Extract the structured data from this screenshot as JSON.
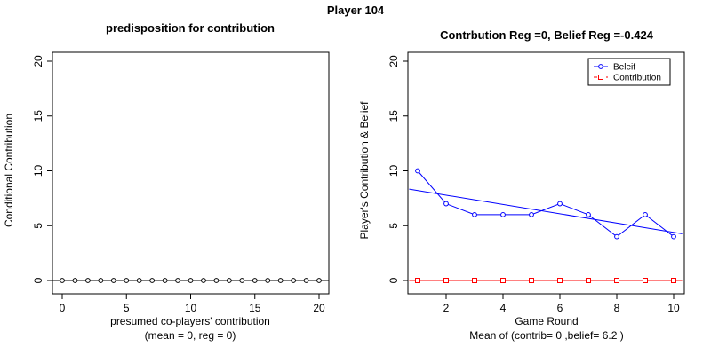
{
  "page_title": "Player 104",
  "colors": {
    "belief": "#0000ff",
    "contribution": "#ff0000",
    "axis": "#000000",
    "background": "#ffffff"
  },
  "chart_data": [
    {
      "type": "scatter",
      "title": "predisposition for contribution",
      "xlabel": "presumed co-players' contribution",
      "xlabel_sub": "(mean = 0, reg = 0)",
      "ylabel": "Conditional Contribution",
      "xlim": [
        0,
        20
      ],
      "ylim": [
        0,
        20
      ],
      "x_ticks": [
        0,
        5,
        10,
        15,
        20
      ],
      "y_ticks": [
        0,
        5,
        10,
        15,
        20
      ],
      "grid": false,
      "reference_line": {
        "type": "horizontal",
        "y": 0
      },
      "series": [
        {
          "marker": "circle",
          "color": "#000000",
          "x": [
            0,
            1,
            2,
            3,
            4,
            5,
            6,
            7,
            8,
            9,
            10,
            11,
            12,
            13,
            14,
            15,
            16,
            17,
            18,
            19,
            20
          ],
          "y": [
            0,
            0,
            0,
            0,
            0,
            0,
            0,
            0,
            0,
            0,
            0,
            0,
            0,
            0,
            0,
            0,
            0,
            0,
            0,
            0,
            0
          ]
        }
      ]
    },
    {
      "type": "line",
      "title": "Contrbution Reg =0, Belief Reg =-0.424",
      "xlabel": "Game Round",
      "xlabel_sub": "Mean of (contrib= 0  ,belief= 6.2 )",
      "ylabel": "Player's Contribution & Belief",
      "xlim": [
        1,
        10
      ],
      "ylim": [
        0,
        20
      ],
      "x_ticks": [
        2,
        4,
        6,
        8,
        10
      ],
      "y_ticks": [
        0,
        5,
        10,
        15,
        20
      ],
      "grid": false,
      "legend": {
        "placement": "top-right"
      },
      "x": [
        1,
        2,
        3,
        4,
        5,
        6,
        7,
        8,
        9,
        10
      ],
      "series": [
        {
          "name": "Beleif",
          "color": "#0000ff",
          "marker": "circle",
          "values": [
            10,
            7,
            6,
            6,
            6,
            7,
            6,
            4,
            6,
            4
          ]
        },
        {
          "name": "Contribution",
          "color": "#ff0000",
          "marker": "square",
          "line_style": "dashed",
          "values": [
            0,
            0,
            0,
            0,
            0,
            0,
            0,
            0,
            0,
            0
          ]
        }
      ],
      "trend_lines": [
        {
          "series": "Beleif",
          "color": "#0000ff",
          "slope": -0.424,
          "x": [
            0.7,
            10.3
          ],
          "y": [
            8.33,
            4.26
          ]
        },
        {
          "series": "Contribution",
          "color": "#ff0000",
          "slope": 0,
          "x": [
            0.7,
            10.3
          ],
          "y": [
            0,
            0
          ]
        }
      ]
    }
  ]
}
